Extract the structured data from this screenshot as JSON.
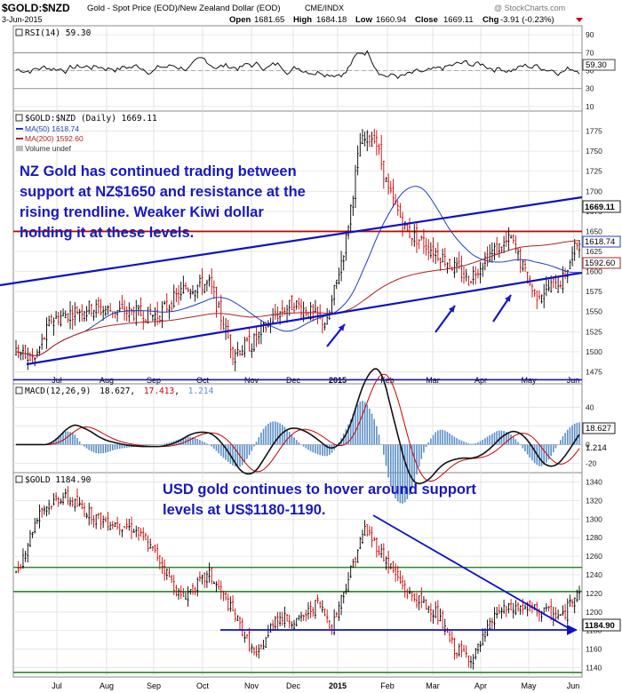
{
  "header": {
    "symbol": "$GOLD:$NZD",
    "description": "Gold - Spot Price (EOD)/New Zealand Dollar (EOD)",
    "exchange": "CME/INDX",
    "date": "3-Jun-2015",
    "open_label": "Open",
    "open": "1681.65",
    "high_label": "High",
    "high": "1684.18",
    "low_label": "Low",
    "low": "1660.94",
    "close_label": "Close",
    "close": "1669.11",
    "chg_label": "Chg",
    "chg": "-3.91 (-0.23%)",
    "watermark": "@ StockCharts.com"
  },
  "colors": {
    "price_up": "#000000",
    "price_down": "#cc0000",
    "ma50": "#1f3fbf",
    "ma200": "#b22222",
    "trendline": "#1010c8",
    "support_red": "#cc0000",
    "support_green": "#2a8a2a",
    "annotation": "#1818c0",
    "histogram": "#5b8fc7"
  },
  "chart_data": [
    {
      "type": "line",
      "name": "rsi-panel",
      "label": "RSI(14) 59.30",
      "last_value": "59.30",
      "ylim": [
        5,
        100
      ],
      "y_ticks": [
        "90",
        "70",
        "50",
        "30",
        "10"
      ]
    },
    {
      "type": "candlestick",
      "name": "gold-nzd-panel",
      "legend": [
        "$GOLD:$NZD (Daily) 1669.11",
        "MA(50) 1618.74",
        "MA(200) 1592.60",
        "Volume undef"
      ],
      "ylim": [
        1460,
        1800
      ],
      "y_ticks": [
        "1775",
        "1750",
        "1725",
        "1700",
        "1675",
        "1650",
        "1625",
        "1600",
        "1575",
        "1550",
        "1525",
        "1500",
        "1475"
      ],
      "x_ticks": [
        "Jul",
        "Aug",
        "Sep",
        "Oct",
        "Nov",
        "Dec",
        "2015",
        "Feb",
        "Mar",
        "Apr",
        "May",
        "Jun"
      ],
      "last_close": "1669.11",
      "ma50_value": "1618.74",
      "ma200_value": "1592.60",
      "support_level": 1650,
      "bottom_level": 1465,
      "annotation": [
        "NZ Gold has continued trading between",
        "support at NZ$1650 and resistance at the",
        "rising trendline. Weaker Kiwi dollar",
        "holding it at these levels."
      ]
    },
    {
      "type": "line",
      "name": "macd-panel",
      "label_parts": [
        "MACD(12,26,9)",
        "18.627",
        "17.413",
        "1.214"
      ],
      "ylim": [
        -30,
        65
      ],
      "y_ticks": [
        "40",
        "20",
        "0",
        "-20"
      ],
      "macd_value": "18.627",
      "hist_value": "1.214"
    },
    {
      "type": "candlestick",
      "name": "gold-usd-panel",
      "legend": [
        "$GOLD 1184.90"
      ],
      "ylim": [
        1130,
        1350
      ],
      "y_ticks": [
        "1340",
        "1320",
        "1300",
        "1280",
        "1260",
        "1240",
        "1220",
        "1200",
        "1180",
        "1160",
        "1140"
      ],
      "x_ticks": [
        "Jul",
        "Aug",
        "Sep",
        "Oct",
        "Nov",
        "Dec",
        "2015",
        "Feb",
        "Mar",
        "Apr",
        "May",
        "Jun"
      ],
      "last_close": "1184.90",
      "support_levels": [
        1248,
        1222,
        1135
      ],
      "annotation": [
        "USD gold continues to hover around support",
        "levels at US$1180-1190."
      ]
    }
  ]
}
